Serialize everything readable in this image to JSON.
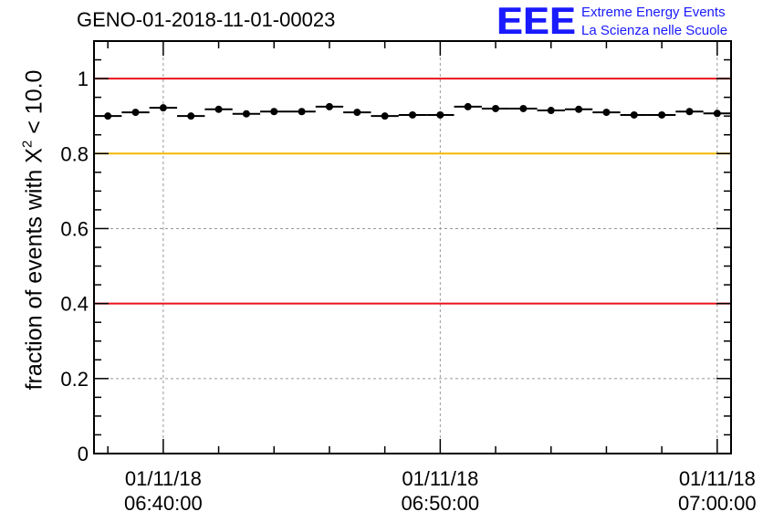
{
  "title": "GENO-01-2018-11-01-00023",
  "logo": {
    "mark": "EEE",
    "line1": "Extreme Energy Events",
    "line2": "La Scienza nelle Scuole"
  },
  "chart_data": {
    "type": "scatter",
    "title": "GENO-01-2018-11-01-00023",
    "ylabel_prefix": "fraction of events with X",
    "ylabel_sup": "2",
    "ylabel_suffix": " < 10.0",
    "ylim": [
      0,
      1.1
    ],
    "yticks": [
      {
        "value": 0,
        "label": "0"
      },
      {
        "value": 0.2,
        "label": "0.2"
      },
      {
        "value": 0.4,
        "label": "0.4"
      },
      {
        "value": 0.6,
        "label": "0.6"
      },
      {
        "value": 0.8,
        "label": "0.8"
      },
      {
        "value": 1.0,
        "label": "1"
      }
    ],
    "xlim": [
      "06:37:30",
      "07:00:30"
    ],
    "xticks": [
      {
        "time": "06:40:00",
        "date": "01/11/18"
      },
      {
        "time": "06:50:00",
        "date": "01/11/18"
      },
      {
        "time": "07:00:00",
        "date": "01/11/18"
      }
    ],
    "grid": true,
    "reference_lines": [
      {
        "y": 1.0,
        "color": "#e8121c"
      },
      {
        "y": 0.8,
        "color": "#f5b800"
      },
      {
        "y": 0.4,
        "color": "#e8121c"
      }
    ],
    "bin_width_seconds": 60,
    "series": [
      {
        "points": [
          {
            "t": "06:38:00",
            "y": 0.9
          },
          {
            "t": "06:39:00",
            "y": 0.91
          },
          {
            "t": "06:40:00",
            "y": 0.922
          },
          {
            "t": "06:41:00",
            "y": 0.9
          },
          {
            "t": "06:42:00",
            "y": 0.918
          },
          {
            "t": "06:43:00",
            "y": 0.906
          },
          {
            "t": "06:44:00",
            "y": 0.912
          },
          {
            "t": "06:45:00",
            "y": 0.912
          },
          {
            "t": "06:46:00",
            "y": 0.925
          },
          {
            "t": "06:47:00",
            "y": 0.91
          },
          {
            "t": "06:48:00",
            "y": 0.9
          },
          {
            "t": "06:49:00",
            "y": 0.903
          },
          {
            "t": "06:50:00",
            "y": 0.903
          },
          {
            "t": "06:51:00",
            "y": 0.925
          },
          {
            "t": "06:52:00",
            "y": 0.92
          },
          {
            "t": "06:53:00",
            "y": 0.92
          },
          {
            "t": "06:54:00",
            "y": 0.915
          },
          {
            "t": "06:55:00",
            "y": 0.918
          },
          {
            "t": "06:56:00",
            "y": 0.91
          },
          {
            "t": "06:57:00",
            "y": 0.903
          },
          {
            "t": "06:58:00",
            "y": 0.903
          },
          {
            "t": "06:59:00",
            "y": 0.912
          },
          {
            "t": "07:00:00",
            "y": 0.907
          }
        ]
      }
    ]
  }
}
